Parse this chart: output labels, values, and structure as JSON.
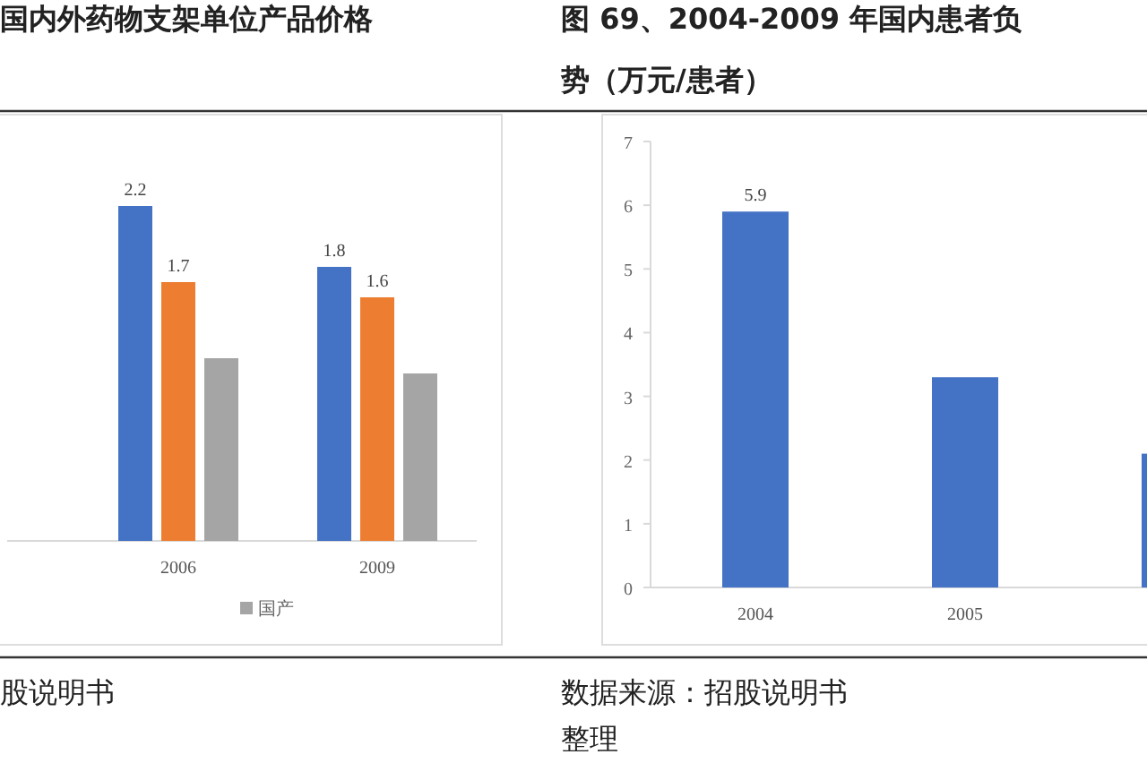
{
  "chart_data": [
    {
      "type": "bar",
      "title": "国内外药物支架单位产品价格",
      "categories": [
        "2006",
        "2009"
      ],
      "series": [
        {
          "color": "#4472c4",
          "values": [
            2.2,
            1.8
          ],
          "value_labels": [
            "2.2",
            "1.8"
          ]
        },
        {
          "color": "#ed7d31",
          "values": [
            1.7,
            1.6
          ],
          "value_labels": [
            "1.7",
            "1.6"
          ]
        },
        {
          "name": "国产",
          "color": "#a5a5a5",
          "values": [
            1.2,
            1.1
          ],
          "value_labels": [
            null,
            null
          ]
        }
      ],
      "legend": "bottom",
      "annotations": [
        "股说明书"
      ]
    },
    {
      "type": "bar",
      "title": "图 69、2004-2009 年国内患者负",
      "subtitle": "势（万元/患者）",
      "categories": [
        "2004",
        "2005",
        null
      ],
      "series": [
        {
          "color": "#4472c4",
          "values": [
            5.9,
            3.3,
            2.1
          ],
          "value_labels": [
            "5.9",
            null,
            null
          ]
        }
      ],
      "ylim": [
        0,
        7
      ],
      "yticks": [
        0,
        1,
        2,
        3,
        4,
        5,
        6,
        7
      ],
      "grid": false,
      "annotations": [
        "数据来源：招股说明书",
        "整理"
      ]
    }
  ]
}
